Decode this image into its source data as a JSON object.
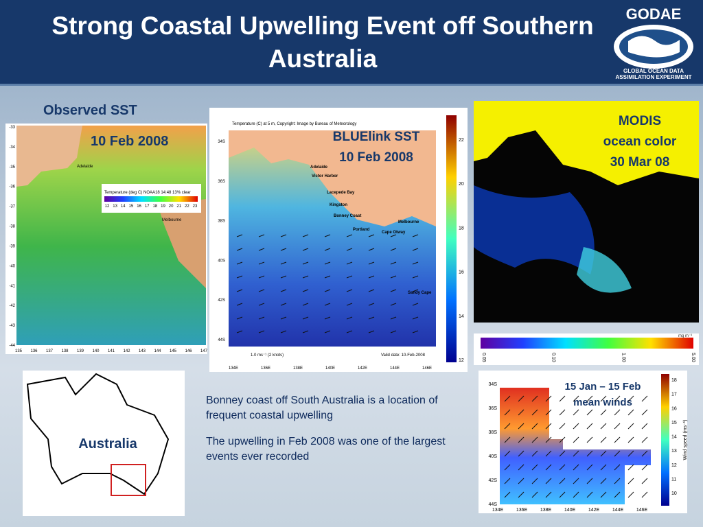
{
  "header": {
    "title": "Strong Coastal Upwelling Event off Southern Australia",
    "logo": {
      "name": "GODAE",
      "line1": "GLOBAL OCEAN DATA",
      "line2": "ASSIMILATION EXPERIMENT"
    }
  },
  "observed_sst": {
    "heading": "Observed SST",
    "label": "10 Feb 2008",
    "lat_labels": [
      "-33",
      "-34",
      "-35",
      "-36",
      "-37",
      "-38",
      "-39",
      "-40",
      "-41",
      "-42",
      "-43",
      "-44"
    ],
    "lon_labels": [
      "135",
      "136",
      "137",
      "138",
      "139",
      "140",
      "141",
      "142",
      "143",
      "144",
      "145",
      "146",
      "147"
    ],
    "legend_title": "Temperature (deg C) NOAA18 14:48 13% clear",
    "legend_ticks": [
      "12",
      "13",
      "14",
      "15",
      "16",
      "17",
      "18",
      "19",
      "20",
      "21",
      "22",
      "23"
    ],
    "places": [
      "Adelaide",
      "Melbourne"
    ]
  },
  "bluelink": {
    "label_line1": "BLUElink SST",
    "label_line2": "10 Feb 2008",
    "caption": "Temperature (C) at 5 m, Copyright: Image by Bureau of Meteorology",
    "lat_labels": [
      "34S",
      "36S",
      "38S",
      "40S",
      "42S",
      "44S"
    ],
    "lon_labels": [
      "134E",
      "136E",
      "138E",
      "140E",
      "142E",
      "144E",
      "146E"
    ],
    "colorbar_ticks": [
      "22",
      "20",
      "18",
      "16",
      "14",
      "12"
    ],
    "places": [
      "Adelaide",
      "Victor Harbor",
      "Lacepede Bay",
      "Kingston",
      "Bonney Coast",
      "Portland",
      "Cape Otway",
      "Melbourne",
      "Sandy Cape"
    ],
    "scale": "1.0 ms⁻¹ (2 knots)",
    "valid": "Valid date: 10-Feb-2008"
  },
  "modis": {
    "label_line1": "MODIS",
    "label_line2": "ocean color",
    "label_line3": "30 Mar 08",
    "colorbar_ticks": [
      "0.05",
      "0.10",
      "1.00",
      "5.00"
    ],
    "unit": "mg m⁻³"
  },
  "winds": {
    "label_line1": "15 Jan – 15 Feb",
    "label_line2": "mean winds",
    "lat_labels": [
      "34S",
      "36S",
      "38S",
      "40S",
      "42S",
      "44S"
    ],
    "lon_labels": [
      "134E",
      "136E",
      "138E",
      "140E",
      "142E",
      "144E",
      "146E"
    ],
    "colorbar_ticks": [
      "18",
      "17",
      "16",
      "15",
      "14",
      "13",
      "12",
      "11",
      "10"
    ],
    "colorbar_title": "Wind speed (ms⁻¹)"
  },
  "map": {
    "label": "Australia"
  },
  "text": {
    "paragraph1": "Bonney coast off South Australia is a location of frequent coastal upwelling",
    "paragraph2": "The upwelling in Feb 2008 was one of the largest events ever recorded"
  }
}
